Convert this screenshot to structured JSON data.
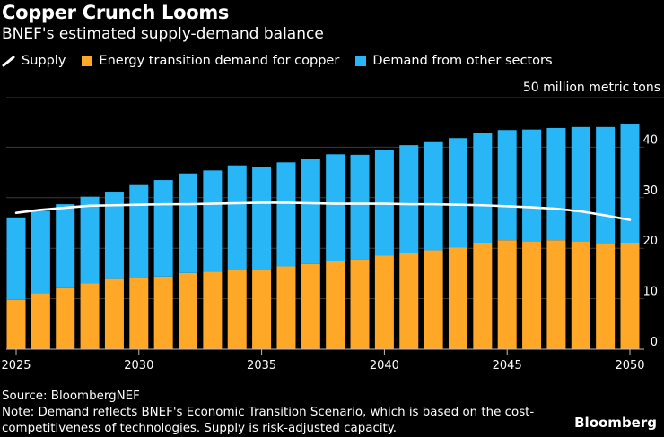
{
  "header": {
    "title": "Copper Crunch Looms",
    "subtitle": "BNEF's estimated supply-demand balance"
  },
  "legend": [
    {
      "label": "Supply",
      "color": "#ffffff",
      "shape": "line"
    },
    {
      "label": "Energy transition demand for copper",
      "color": "#ffa726",
      "shape": "square"
    },
    {
      "label": "Demand from other sectors",
      "color": "#29b6f6",
      "shape": "square"
    }
  ],
  "unit_label": "50 million metric tons",
  "footer": {
    "source": "Source: BloombergNEF",
    "note": "Note: Demand reflects BNEF's Economic Transition Scenario, which is based on the cost-competitiveness of technologies. Supply is risk-adjusted capacity.",
    "brand": "Bloomberg"
  },
  "chart_data": {
    "type": "bar",
    "stacked": true,
    "x": [
      2025,
      2026,
      2027,
      2028,
      2029,
      2030,
      2031,
      2032,
      2033,
      2034,
      2035,
      2036,
      2037,
      2038,
      2039,
      2040,
      2041,
      2042,
      2043,
      2044,
      2045,
      2046,
      2047,
      2048,
      2049,
      2050
    ],
    "x_ticks": [
      "2025",
      "2030",
      "2035",
      "2040",
      "2045",
      "2050"
    ],
    "y_ticks": [
      "0",
      "10",
      "20",
      "30",
      "40"
    ],
    "ylim": [
      0,
      50
    ],
    "series": [
      {
        "name": "Energy transition demand for copper",
        "color": "#ffa726",
        "kind": "bar",
        "values": [
          9.8,
          11.1,
          12.1,
          13.1,
          13.9,
          14.1,
          14.4,
          15.1,
          15.4,
          15.9,
          15.9,
          16.4,
          16.9,
          17.5,
          17.8,
          18.6,
          19.1,
          19.6,
          20.2,
          21.1,
          21.6,
          21.4,
          21.6,
          21.4,
          21.0,
          21.1
        ]
      },
      {
        "name": "Demand from other sectors",
        "color": "#29b6f6",
        "kind": "bar",
        "values": [
          16.3,
          16.3,
          16.6,
          17.1,
          17.3,
          18.4,
          19.1,
          19.7,
          20.0,
          20.5,
          20.2,
          20.6,
          20.8,
          21.1,
          20.7,
          20.8,
          21.3,
          21.4,
          21.6,
          21.8,
          21.8,
          22.1,
          22.2,
          22.6,
          23.0,
          23.4
        ]
      },
      {
        "name": "Supply",
        "color": "#ffffff",
        "kind": "line",
        "values": [
          27.0,
          27.6,
          28.0,
          28.4,
          28.5,
          28.6,
          28.7,
          28.7,
          28.8,
          28.9,
          29.0,
          29.0,
          28.9,
          28.8,
          28.8,
          28.8,
          28.7,
          28.7,
          28.6,
          28.5,
          28.3,
          28.1,
          27.8,
          27.3,
          26.5,
          25.6
        ]
      }
    ],
    "grid": true,
    "legend_position": "top-left",
    "y_axis_side": "right"
  }
}
